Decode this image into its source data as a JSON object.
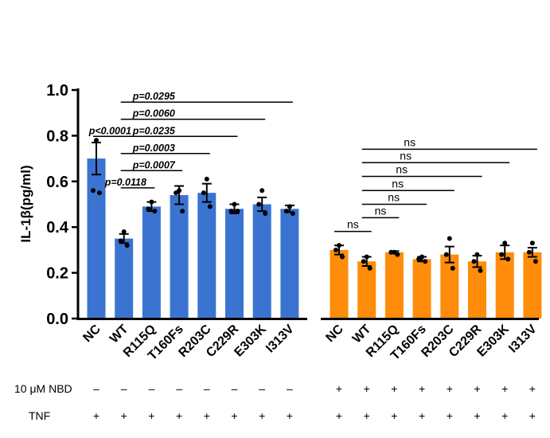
{
  "chart_data": {
    "type": "bar",
    "ylabel": "IL-1β(pg/ml)",
    "ylim": [
      0,
      1.0
    ],
    "yticks": [
      "0.0",
      "0.2",
      "0.4",
      "0.6",
      "0.8",
      "1.0"
    ],
    "colors": {
      "untreated": "#3B73D1",
      "nbd": "#FF8C0A"
    },
    "groups": [
      {
        "name": "untreated",
        "categories": [
          "NC",
          "WT",
          "R115Q",
          "T160Fs",
          "R203C",
          "C229R",
          "E303K",
          "I313V"
        ],
        "values": [
          0.7,
          0.35,
          0.49,
          0.54,
          0.55,
          0.48,
          0.5,
          0.48
        ],
        "errors": [
          0.07,
          0.02,
          0.02,
          0.04,
          0.04,
          0.02,
          0.03,
          0.015
        ],
        "points": [
          [
            0.78,
            0.56,
            0.55
          ],
          [
            0.38,
            0.34,
            0.32
          ],
          [
            0.51,
            0.48,
            0.47
          ],
          [
            0.56,
            0.55,
            0.47
          ],
          [
            0.61,
            0.55,
            0.49
          ],
          [
            0.5,
            0.47,
            0.47
          ],
          [
            0.56,
            0.5,
            0.46
          ],
          [
            0.49,
            0.47,
            0.46
          ]
        ]
      },
      {
        "name": "nbd",
        "categories": [
          "NC",
          "WT",
          "R115Q",
          "T160Fs",
          "R203C",
          "C229R",
          "E303K",
          "I313V"
        ],
        "values": [
          0.3,
          0.25,
          0.29,
          0.26,
          0.28,
          0.25,
          0.29,
          0.29
        ],
        "errors": [
          0.02,
          0.02,
          0.005,
          0.01,
          0.035,
          0.025,
          0.03,
          0.02
        ],
        "points": [
          [
            0.32,
            0.3,
            0.27
          ],
          [
            0.27,
            0.25,
            0.22
          ],
          [
            0.29,
            0.29,
            0.28
          ],
          [
            0.27,
            0.26,
            0.25
          ],
          [
            0.35,
            0.28,
            0.22
          ],
          [
            0.28,
            0.25,
            0.21
          ],
          [
            0.33,
            0.28,
            0.26
          ],
          [
            0.33,
            0.29,
            0.25
          ]
        ]
      }
    ],
    "annotations": {
      "left": [
        {
          "from": "NC",
          "to": "WT",
          "text": "p<0.0001",
          "y": 0.797
        },
        {
          "from": "WT",
          "to": "R115Q",
          "text": "p=0.0118",
          "y": 0.572
        },
        {
          "from": "WT",
          "to": "T160Fs",
          "text": "p=0.0007",
          "y": 0.647
        },
        {
          "from": "WT",
          "to": "R203C",
          "text": "p=0.0003",
          "y": 0.722
        },
        {
          "from": "WT",
          "to": "C229R",
          "text": "p=0.0235",
          "y": 0.797
        },
        {
          "from": "WT",
          "to": "E303K",
          "text": "p=0.0060",
          "y": 0.872
        },
        {
          "from": "WT",
          "to": "I313V",
          "text": "p=0.0295",
          "y": 0.947
        }
      ],
      "right": [
        {
          "from": "NC",
          "to": "WT",
          "text": "ns",
          "y": 0.381
        },
        {
          "from": "WT",
          "to": "R115Q",
          "text": "ns",
          "y": 0.441
        },
        {
          "from": "WT",
          "to": "T160Fs",
          "text": "ns",
          "y": 0.5
        },
        {
          "from": "WT",
          "to": "R203C",
          "text": "ns",
          "y": 0.56
        },
        {
          "from": "WT",
          "to": "C229R",
          "text": "ns",
          "y": 0.622
        },
        {
          "from": "WT",
          "to": "E303K",
          "text": "ns",
          "y": 0.682
        },
        {
          "from": "WT",
          "to": "I313V",
          "text": "ns",
          "y": 0.741
        }
      ]
    },
    "conditions": [
      {
        "label": "10 μM NBD",
        "signs": [
          "–",
          "–",
          "–",
          "–",
          "–",
          "–",
          "–",
          "–",
          "+",
          "+",
          "+",
          "+",
          "+",
          "+",
          "+",
          "+"
        ]
      },
      {
        "label": "TNF",
        "signs": [
          "+",
          "+",
          "+",
          "+",
          "+",
          "+",
          "+",
          "+",
          "+",
          "+",
          "+",
          "+",
          "+",
          "+",
          "+",
          "+"
        ]
      }
    ]
  }
}
